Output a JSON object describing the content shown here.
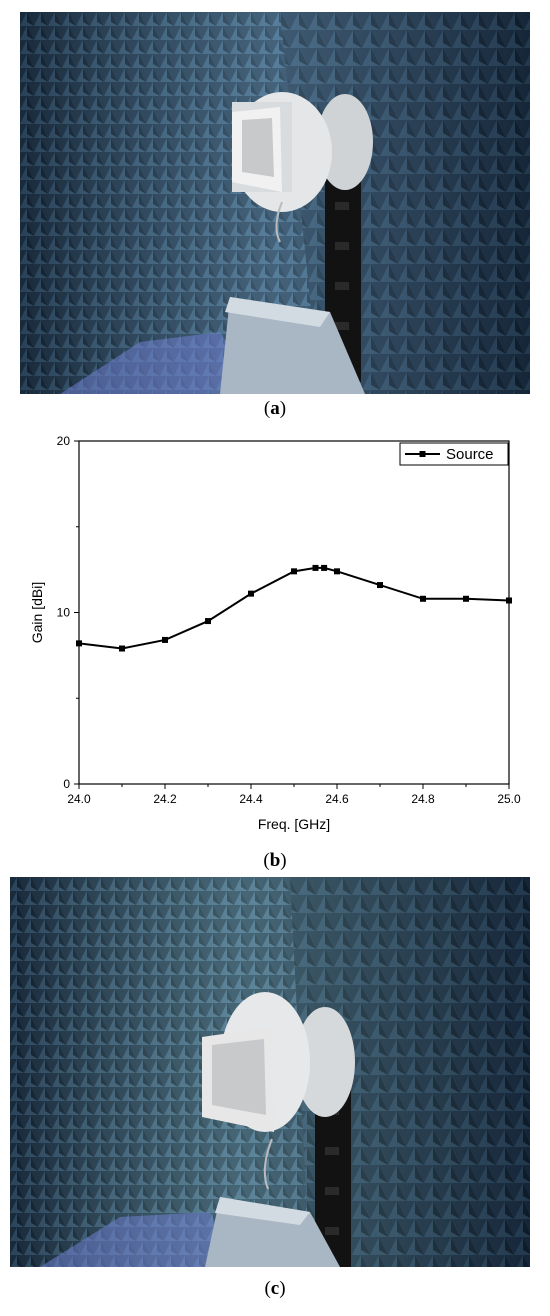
{
  "captions": {
    "a": "a",
    "b": "b",
    "c": "c"
  },
  "photos": {
    "a_icon": "anechoic-chamber-photo",
    "c_icon": "anechoic-chamber-photo"
  },
  "chart_data": {
    "type": "line",
    "xlabel": "Freq. [GHz]",
    "ylabel": "Gain [dBi]",
    "xlim": [
      24.0,
      25.0
    ],
    "ylim": [
      0,
      20
    ],
    "xticks": [
      "24.0",
      "24.2",
      "24.4",
      "24.6",
      "24.8",
      "25.0"
    ],
    "yticks": [
      "0",
      "10",
      "20"
    ],
    "legend_position": "top-right",
    "series": [
      {
        "name": "Source",
        "marker": "square",
        "color": "#000000",
        "x": [
          24.0,
          24.1,
          24.2,
          24.3,
          24.4,
          24.5,
          24.55,
          24.57,
          24.6,
          24.7,
          24.8,
          24.9,
          25.0
        ],
        "y": [
          8.2,
          7.9,
          8.4,
          9.5,
          11.1,
          12.4,
          12.6,
          12.6,
          12.4,
          11.6,
          10.8,
          10.8,
          10.7
        ]
      }
    ]
  }
}
